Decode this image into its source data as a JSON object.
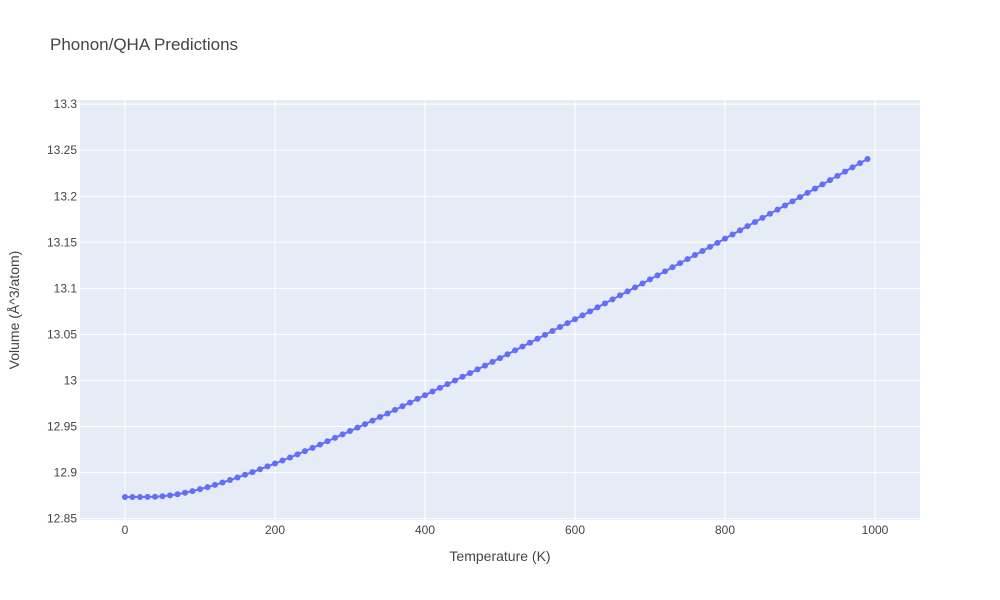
{
  "chart_data": {
    "type": "line",
    "title": "Phonon/QHA Predictions",
    "xlabel": "Temperature (K)",
    "ylabel": "Volume (Å^3/atom)",
    "xlim": [
      -60,
      1060
    ],
    "ylim": [
      12.8485,
      13.3045
    ],
    "xticks": [
      0,
      200,
      400,
      600,
      800,
      1000
    ],
    "xtick_labels": [
      "0",
      "200",
      "400",
      "600",
      "800",
      "1000"
    ],
    "yticks": [
      12.85,
      12.9,
      12.95,
      13.0,
      13.05,
      13.1,
      13.15,
      13.2,
      13.25,
      13.3
    ],
    "ytick_labels": [
      "12.85",
      "12.9",
      "12.95",
      "13",
      "13.05",
      "13.1",
      "13.15",
      "13.2",
      "13.25",
      "13.3"
    ],
    "grid": true,
    "series": [
      {
        "mode": "lines+markers",
        "color": "#636efa",
        "x": [
          0,
          10,
          20,
          30,
          40,
          50,
          60,
          70,
          80,
          90,
          100,
          110,
          120,
          130,
          140,
          150,
          160,
          170,
          180,
          190,
          200,
          210,
          220,
          230,
          240,
          250,
          260,
          270,
          280,
          290,
          300,
          310,
          320,
          330,
          340,
          350,
          360,
          370,
          380,
          390,
          400,
          410,
          420,
          430,
          440,
          450,
          460,
          470,
          480,
          490,
          500,
          510,
          520,
          530,
          540,
          550,
          560,
          570,
          580,
          590,
          600,
          610,
          620,
          630,
          640,
          650,
          660,
          670,
          680,
          690,
          700,
          710,
          720,
          730,
          740,
          750,
          760,
          770,
          780,
          790,
          800,
          810,
          820,
          830,
          840,
          850,
          860,
          870,
          880,
          890,
          900,
          910,
          920,
          930,
          940,
          950,
          960,
          970,
          980,
          990
        ],
        "y": [
          12.8735,
          12.8735,
          12.8735,
          12.8736,
          12.8738,
          12.8743,
          12.8752,
          12.8765,
          12.8781,
          12.8799,
          12.882,
          12.8842,
          12.8866,
          12.8892,
          12.8919,
          12.8947,
          12.8976,
          12.9005,
          12.9036,
          12.9067,
          12.9099,
          12.9131,
          12.9164,
          12.9198,
          12.9233,
          12.9268,
          12.9304,
          12.934,
          12.9377,
          12.9414,
          12.9451,
          12.9488,
          12.9526,
          12.9564,
          12.9603,
          12.9641,
          12.968,
          12.972,
          12.976,
          12.98,
          12.984,
          12.988,
          12.992,
          12.996,
          13.0,
          13.004,
          13.008,
          13.012,
          13.0161,
          13.0202,
          13.0243,
          13.0284,
          13.0326,
          13.0368,
          13.041,
          13.0453,
          13.0495,
          13.0537,
          13.058,
          13.0622,
          13.0664,
          13.0707,
          13.075,
          13.0794,
          13.0837,
          13.088,
          13.0924,
          13.0967,
          13.101,
          13.1053,
          13.1097,
          13.1141,
          13.1185,
          13.1229,
          13.1274,
          13.1318,
          13.1362,
          13.1406,
          13.145,
          13.1494,
          13.154,
          13.1585,
          13.163,
          13.1675,
          13.172,
          13.1765,
          13.181,
          13.1855,
          13.19,
          13.1945,
          13.1991,
          13.2037,
          13.2083,
          13.2129,
          13.2175,
          13.2221,
          13.2267,
          13.2313,
          13.2359,
          13.2405
        ]
      }
    ]
  }
}
